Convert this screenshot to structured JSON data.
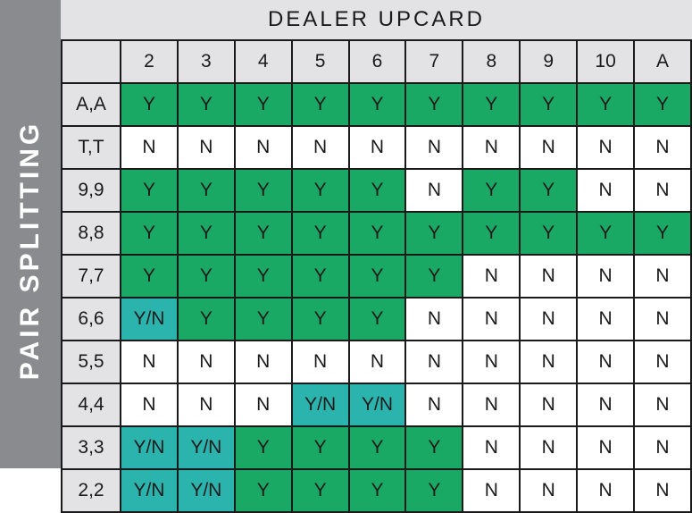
{
  "side_title": "PAIR SPLITTING",
  "header_title": "DEALER UPCARD",
  "columns": [
    "2",
    "3",
    "4",
    "5",
    "6",
    "7",
    "8",
    "9",
    "10",
    "A"
  ],
  "rows": [
    {
      "label": "A,A",
      "cells": [
        "Y",
        "Y",
        "Y",
        "Y",
        "Y",
        "Y",
        "Y",
        "Y",
        "Y",
        "Y"
      ]
    },
    {
      "label": "T,T",
      "cells": [
        "N",
        "N",
        "N",
        "N",
        "N",
        "N",
        "N",
        "N",
        "N",
        "N"
      ]
    },
    {
      "label": "9,9",
      "cells": [
        "Y",
        "Y",
        "Y",
        "Y",
        "Y",
        "N",
        "Y",
        "Y",
        "N",
        "N"
      ]
    },
    {
      "label": "8,8",
      "cells": [
        "Y",
        "Y",
        "Y",
        "Y",
        "Y",
        "Y",
        "Y",
        "Y",
        "Y",
        "Y"
      ]
    },
    {
      "label": "7,7",
      "cells": [
        "Y",
        "Y",
        "Y",
        "Y",
        "Y",
        "Y",
        "N",
        "N",
        "N",
        "N"
      ]
    },
    {
      "label": "6,6",
      "cells": [
        "Y/N",
        "Y",
        "Y",
        "Y",
        "Y",
        "N",
        "N",
        "N",
        "N",
        "N"
      ]
    },
    {
      "label": "5,5",
      "cells": [
        "N",
        "N",
        "N",
        "N",
        "N",
        "N",
        "N",
        "N",
        "N",
        "N"
      ]
    },
    {
      "label": "4,4",
      "cells": [
        "N",
        "N",
        "N",
        "Y/N",
        "Y/N",
        "N",
        "N",
        "N",
        "N",
        "N"
      ]
    },
    {
      "label": "3,3",
      "cells": [
        "Y/N",
        "Y/N",
        "Y",
        "Y",
        "Y",
        "Y",
        "N",
        "N",
        "N",
        "N"
      ]
    },
    {
      "label": "2,2",
      "cells": [
        "Y/N",
        "Y/N",
        "Y",
        "Y",
        "Y",
        "Y",
        "N",
        "N",
        "N",
        "N"
      ]
    }
  ],
  "colors": {
    "Y": "#1aa865",
    "N": "#ffffff",
    "Y/N": "#2bb3ad",
    "header_bg": "#e3e3e6",
    "side_band": "#8a8b8e"
  }
}
